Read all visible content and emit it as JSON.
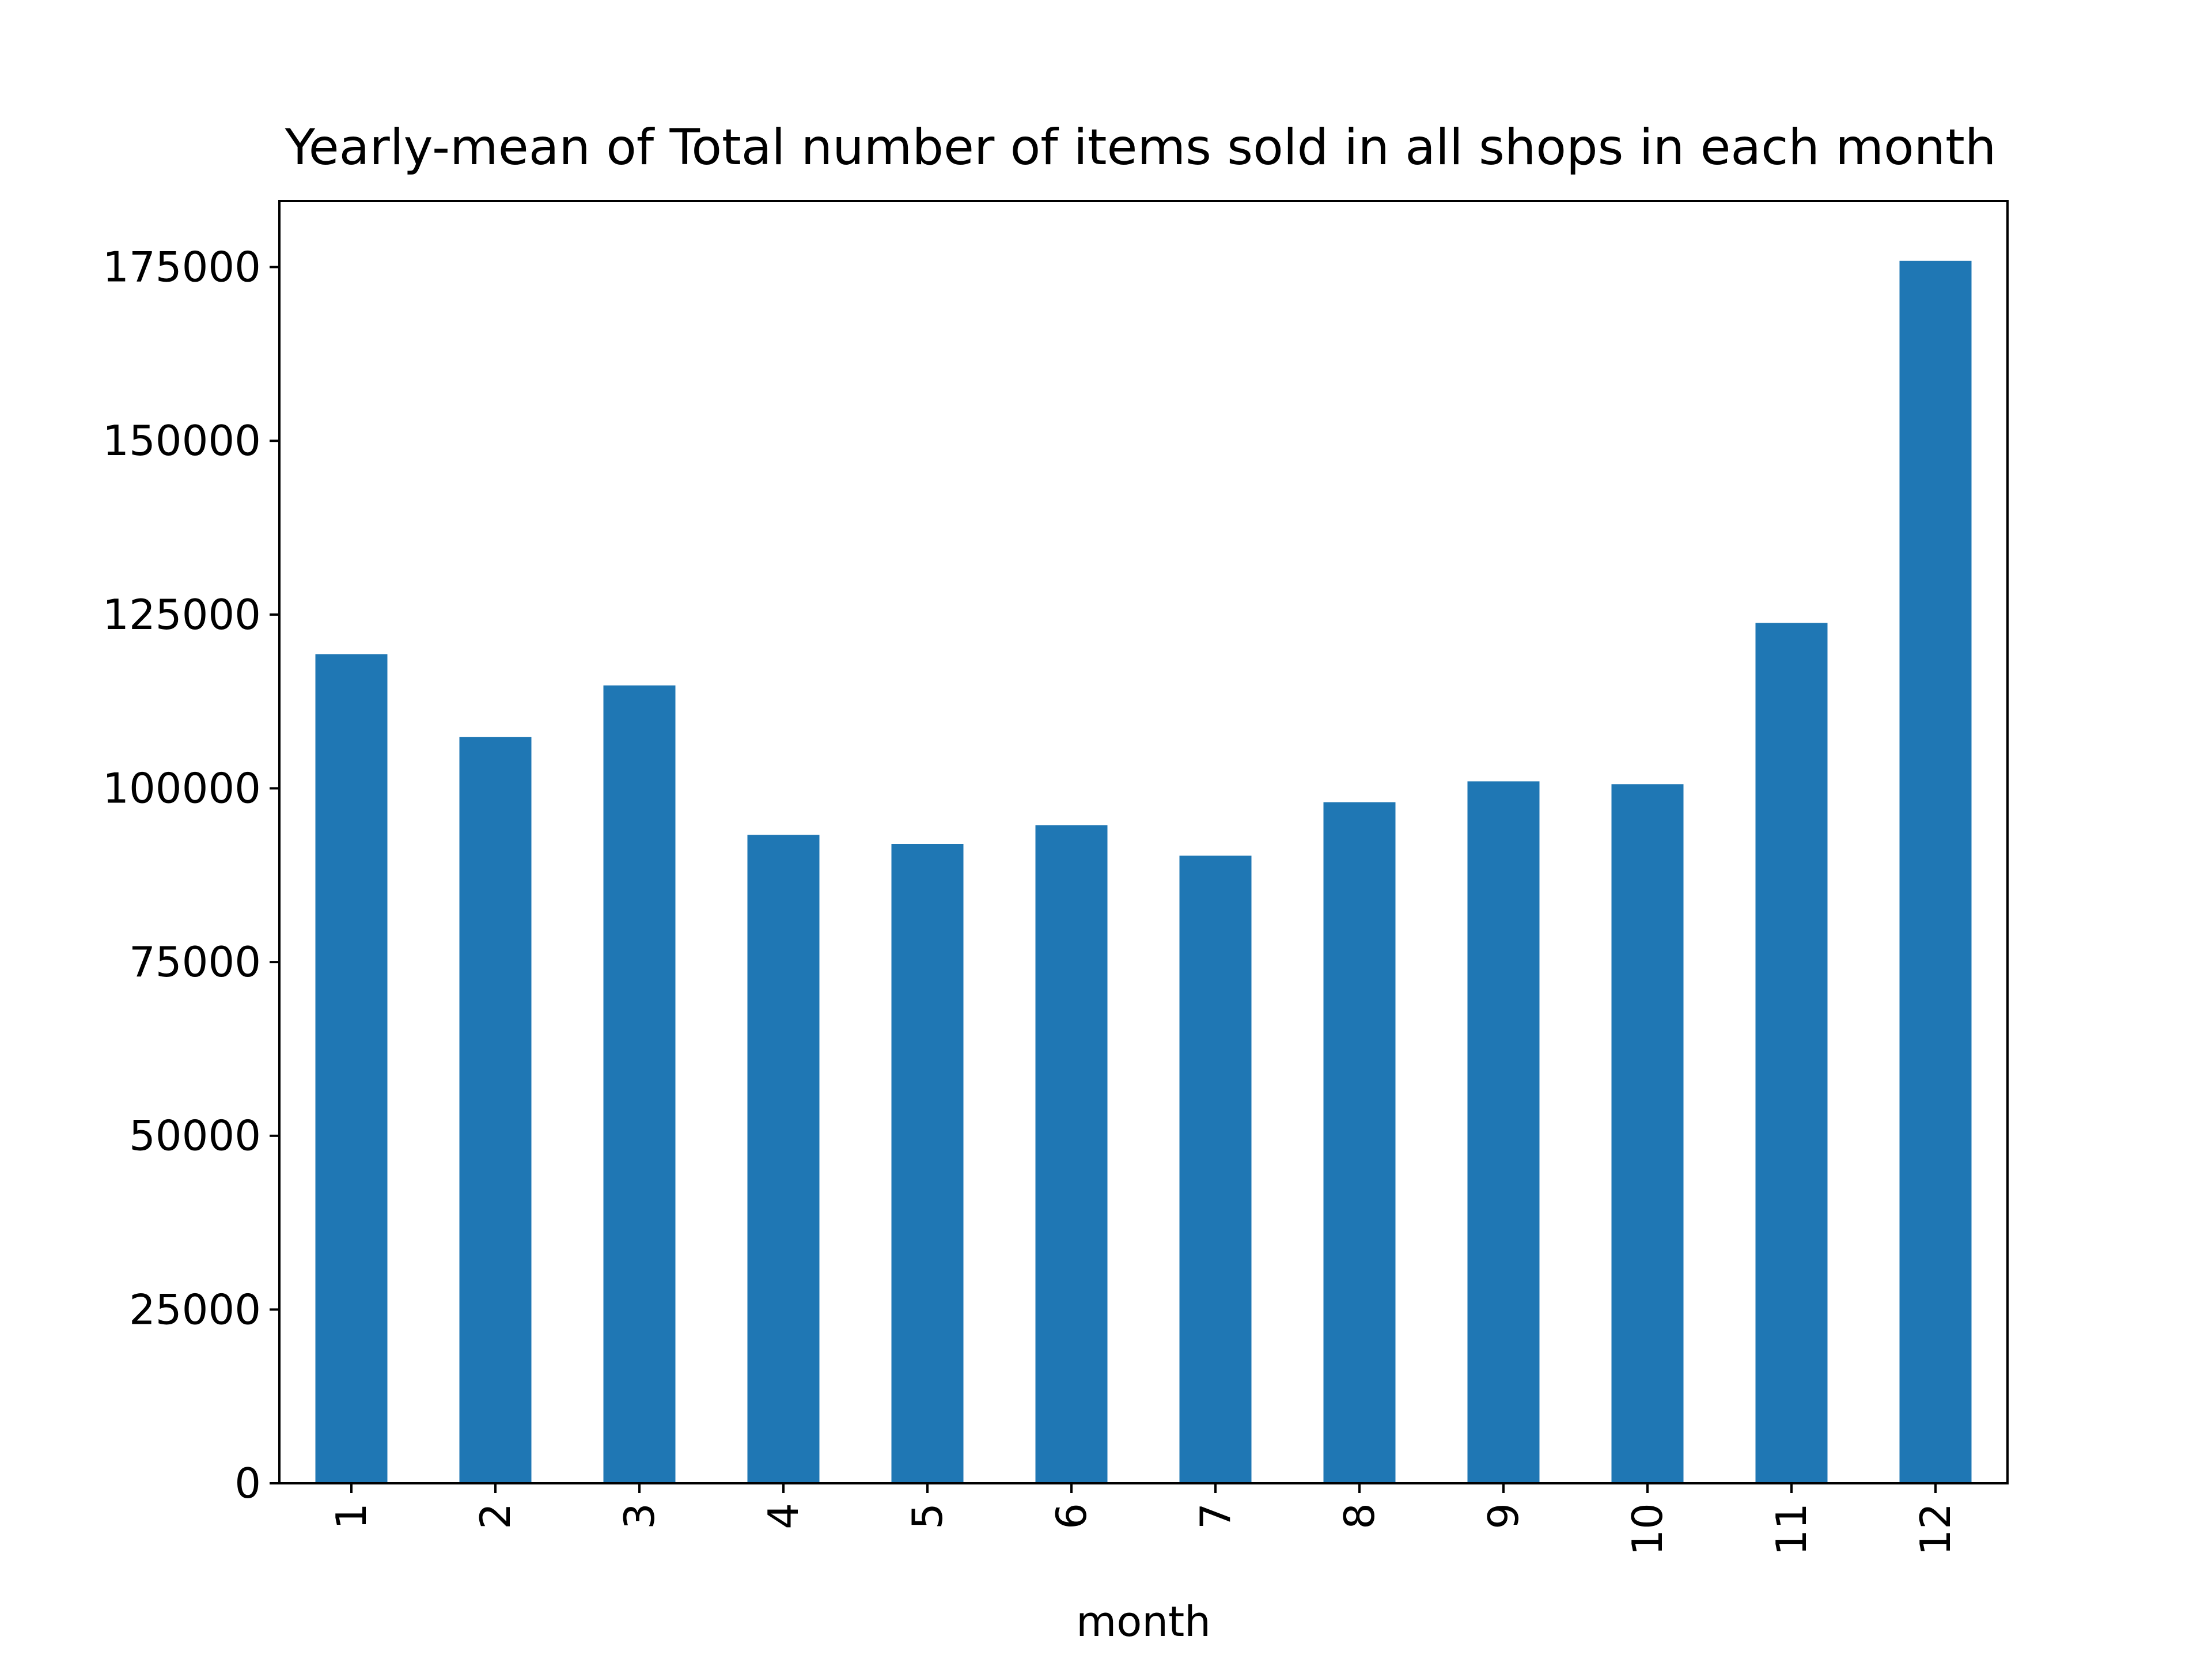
{
  "chart_data": {
    "type": "bar",
    "title": "Yearly-mean of Total number of items sold in all shops in each month",
    "xlabel": "month",
    "ylabel": "",
    "categories": [
      "1",
      "2",
      "3",
      "4",
      "5",
      "6",
      "7",
      "8",
      "9",
      "10",
      "11",
      "12"
    ],
    "values": [
      119300,
      107400,
      114800,
      93300,
      92000,
      94700,
      90300,
      98000,
      101000,
      100600,
      123800,
      175900
    ],
    "ylim": [
      0,
      184500
    ],
    "yticks": [
      0,
      25000,
      50000,
      75000,
      100000,
      125000,
      150000,
      175000
    ],
    "ytick_labels": [
      "0",
      "25000",
      "50000",
      "75000",
      "100000",
      "125000",
      "150000",
      "175000"
    ],
    "xtick_rotation": 90,
    "grid": false,
    "legend": "none",
    "colors": {
      "bar": "#1f77b4",
      "axes": "#000000",
      "background": "#ffffff"
    }
  }
}
